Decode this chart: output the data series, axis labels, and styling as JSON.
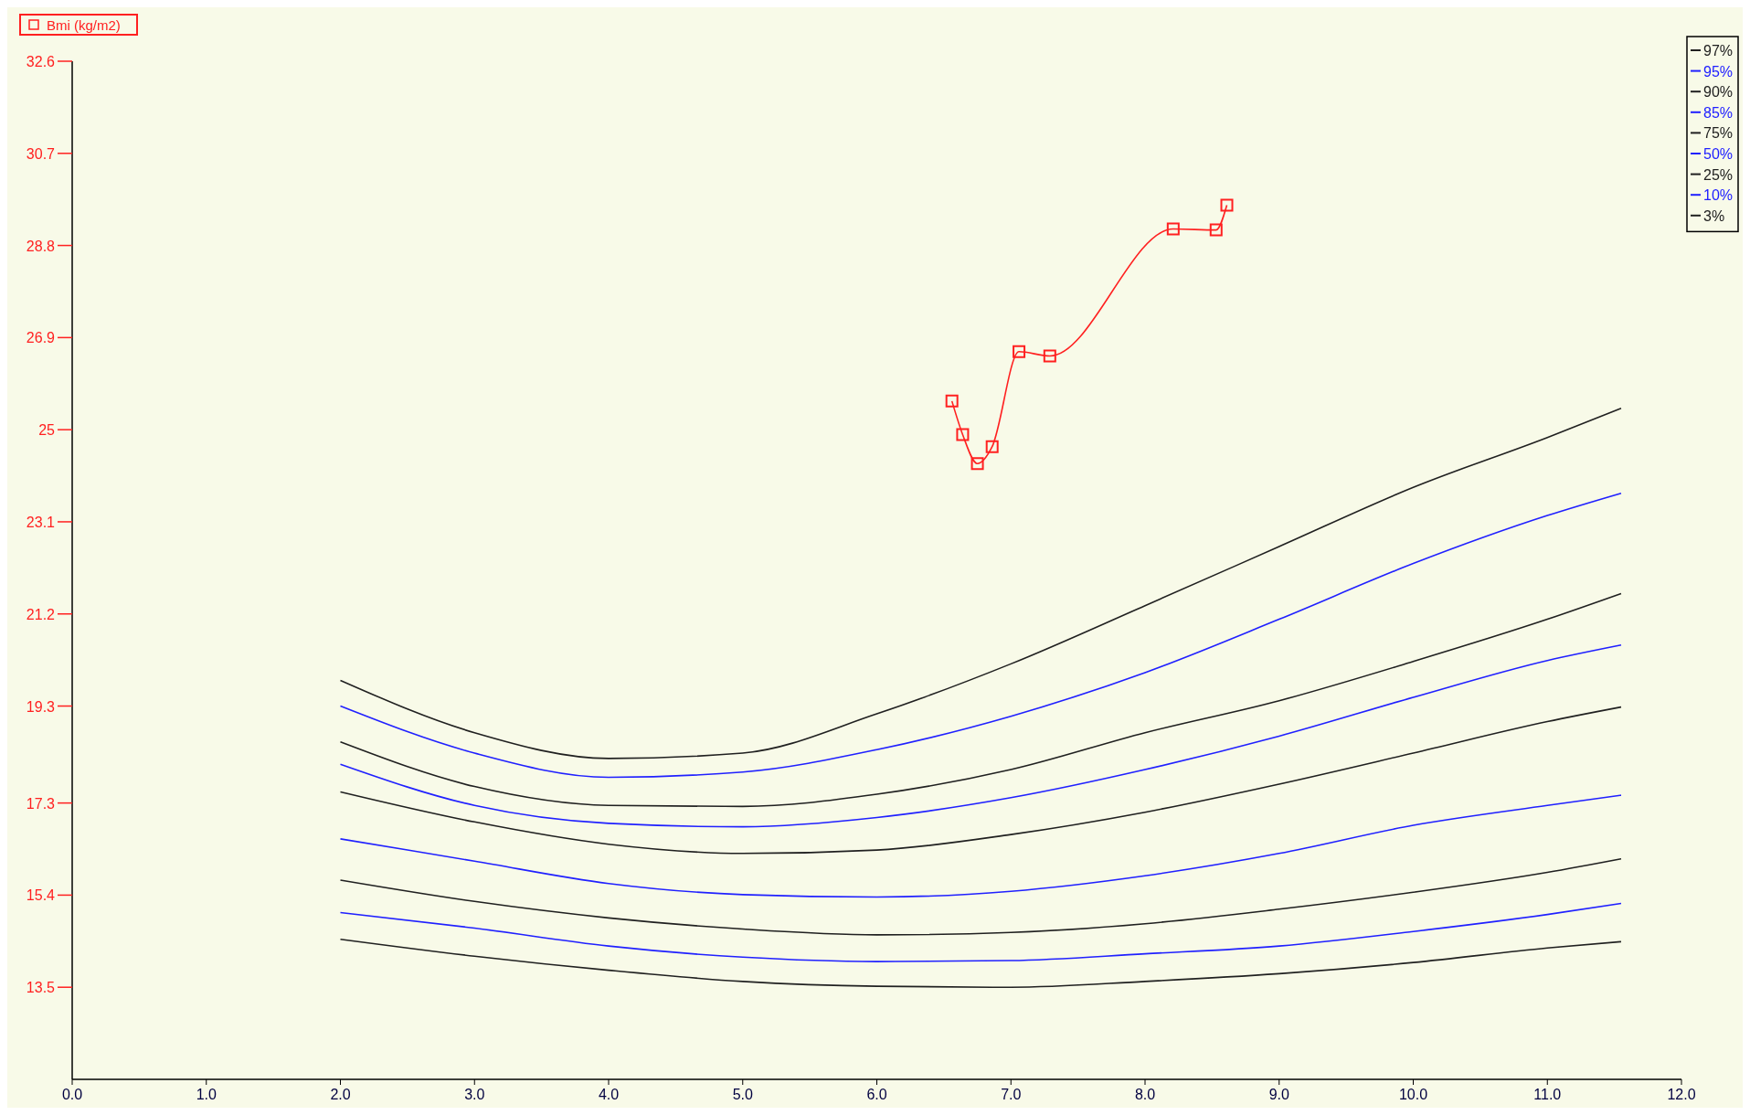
{
  "chart_data": {
    "type": "line",
    "xlim": [
      0,
      12
    ],
    "ylim": [
      11.6,
      32.6
    ],
    "xticks": [
      {
        "value": 0,
        "label": "0.0"
      },
      {
        "value": 1,
        "label": "1.0"
      },
      {
        "value": 2,
        "label": "2.0"
      },
      {
        "value": 3,
        "label": "3.0"
      },
      {
        "value": 4,
        "label": "4.0"
      },
      {
        "value": 5,
        "label": "5.0"
      },
      {
        "value": 6,
        "label": "6.0"
      },
      {
        "value": 7,
        "label": "7.0"
      },
      {
        "value": 8,
        "label": "8.0"
      },
      {
        "value": 9,
        "label": "9.0"
      },
      {
        "value": 10,
        "label": "10.0"
      },
      {
        "value": 11,
        "label": "11.0"
      },
      {
        "value": 12,
        "label": "12.0"
      }
    ],
    "yticks": [
      13.5,
      15.4,
      17.3,
      19.3,
      21.2,
      23.1,
      25,
      26.9,
      28.8,
      30.7,
      32.6
    ],
    "grid": false,
    "legend": "top right",
    "line_style": "solid",
    "series": [
      {
        "name": "Bmi (kg/m2)",
        "color": "#ff2020",
        "marker": "square",
        "x": [
          6.56,
          6.64,
          6.75,
          6.86,
          7.06,
          7.29,
          8.21,
          8.53,
          8.61
        ],
        "values": [
          25.59,
          24.9,
          24.3,
          24.65,
          26.61,
          26.52,
          29.14,
          29.12,
          29.63
        ]
      },
      {
        "name": "97%",
        "color": "#202020",
        "x": [
          2,
          3,
          4,
          5,
          6,
          7,
          8,
          9,
          10,
          11,
          11.55
        ],
        "values": [
          19.83,
          18.75,
          18.22,
          18.33,
          19.14,
          20.17,
          21.37,
          22.59,
          23.81,
          24.84,
          25.44
        ]
      },
      {
        "name": "95%",
        "color": "#2020ff",
        "x": [
          2,
          3,
          4,
          5,
          6,
          7,
          8,
          9,
          10,
          11,
          11.55
        ],
        "values": [
          19.3,
          18.33,
          17.83,
          17.94,
          18.4,
          19.09,
          19.99,
          21.09,
          22.24,
          23.23,
          23.69
        ]
      },
      {
        "name": "90%",
        "color": "#202020",
        "x": [
          2,
          3,
          4,
          5,
          6,
          7,
          8,
          9,
          10,
          11,
          11.55
        ],
        "values": [
          18.56,
          17.64,
          17.25,
          17.23,
          17.48,
          17.99,
          18.75,
          19.41,
          20.22,
          21.09,
          21.62
        ]
      },
      {
        "name": "85%",
        "color": "#2020ff",
        "x": [
          2,
          3,
          4,
          5,
          6,
          7,
          8,
          9,
          10,
          11,
          11.55
        ],
        "values": [
          18.1,
          17.25,
          16.88,
          16.81,
          17.0,
          17.41,
          17.99,
          18.68,
          19.48,
          20.24,
          20.56
        ]
      },
      {
        "name": "75%",
        "color": "#202020",
        "x": [
          2,
          3,
          4,
          5,
          6,
          7,
          8,
          9,
          10,
          11,
          11.55
        ],
        "values": [
          17.53,
          16.91,
          16.45,
          16.26,
          16.33,
          16.65,
          17.11,
          17.69,
          18.33,
          18.98,
          19.28
        ]
      },
      {
        "name": "50%",
        "color": "#2020ff",
        "x": [
          2,
          3,
          4,
          5,
          6,
          7,
          8,
          9,
          10,
          11,
          11.55
        ],
        "values": [
          16.56,
          16.1,
          15.64,
          15.41,
          15.36,
          15.48,
          15.8,
          16.26,
          16.84,
          17.25,
          17.46
        ]
      },
      {
        "name": "25%",
        "color": "#202020",
        "x": [
          2,
          3,
          4,
          5,
          6,
          7,
          8,
          9,
          10,
          11,
          11.55
        ],
        "values": [
          15.71,
          15.27,
          14.93,
          14.7,
          14.58,
          14.63,
          14.81,
          15.11,
          15.46,
          15.87,
          16.15
        ]
      },
      {
        "name": "10%",
        "color": "#2020ff",
        "x": [
          2,
          3,
          4,
          5,
          6,
          7,
          8,
          9,
          10,
          11,
          11.55
        ],
        "values": [
          15.04,
          14.72,
          14.35,
          14.12,
          14.03,
          14.05,
          14.19,
          14.35,
          14.65,
          15.0,
          15.23
        ]
      },
      {
        "name": "3%",
        "color": "#202020",
        "x": [
          2,
          3,
          4,
          5,
          6,
          7,
          8,
          9,
          10,
          11,
          11.55
        ],
        "values": [
          14.49,
          14.14,
          13.85,
          13.62,
          13.52,
          13.5,
          13.62,
          13.78,
          14.01,
          14.31,
          14.44
        ]
      }
    ]
  }
}
